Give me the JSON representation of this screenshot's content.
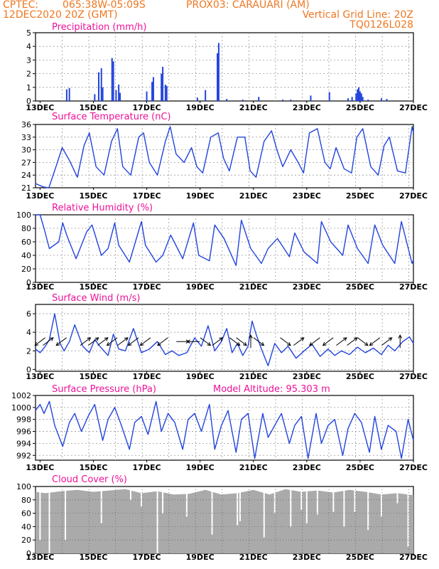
{
  "header": {
    "center": "CPTEC:",
    "coords": "065:38W-05:09S",
    "station": "PROX03: CARAUARI (AM)",
    "date": "12DEC2020 20Z (GMT)",
    "grid_note": "Vertical Grid Line: 20Z",
    "code": "TQ0126L028"
  },
  "colors": {
    "header": "#ee7722",
    "title": "#ee1199",
    "series": "#2244dd",
    "cloud": "#aaaaaa",
    "grid": "#999999"
  },
  "x_axis": {
    "start": "12DEC2020 20Z",
    "end": "27DEC2020 00Z",
    "tick_labels": [
      "13DEC",
      "15DEC",
      "17DEC",
      "19DEC",
      "21DEC",
      "23DEC",
      "25DEC",
      "27DEC"
    ],
    "tick_day": [
      13,
      15,
      17,
      19,
      21,
      23,
      25,
      27
    ]
  },
  "chart_data": [
    {
      "type": "bar",
      "title": "Precipitation (mm/h)",
      "ylim": [
        0,
        5
      ],
      "yticks": [
        0,
        1,
        2,
        3,
        4,
        5
      ],
      "bars": [
        {
          "day": 14.0,
          "value": 0.85
        },
        {
          "day": 14.1,
          "value": 0.95
        },
        {
          "day": 15.05,
          "value": 0.5
        },
        {
          "day": 15.2,
          "value": 2.1
        },
        {
          "day": 15.3,
          "value": 2.4
        },
        {
          "day": 15.35,
          "value": 1.0
        },
        {
          "day": 15.7,
          "value": 3.15
        },
        {
          "day": 15.75,
          "value": 2.9
        },
        {
          "day": 15.85,
          "value": 0.8
        },
        {
          "day": 15.95,
          "value": 1.2
        },
        {
          "day": 16.0,
          "value": 0.6
        },
        {
          "day": 17.0,
          "value": 0.7
        },
        {
          "day": 17.2,
          "value": 1.4
        },
        {
          "day": 17.25,
          "value": 1.75
        },
        {
          "day": 17.55,
          "value": 2.0
        },
        {
          "day": 17.6,
          "value": 2.5
        },
        {
          "day": 17.7,
          "value": 1.2
        },
        {
          "day": 17.75,
          "value": 1.1
        },
        {
          "day": 18.9,
          "value": 0.25
        },
        {
          "day": 19.2,
          "value": 0.8
        },
        {
          "day": 19.65,
          "value": 3.5
        },
        {
          "day": 19.7,
          "value": 4.25
        },
        {
          "day": 20.0,
          "value": 0.15
        },
        {
          "day": 20.6,
          "value": 0.1
        },
        {
          "day": 21.2,
          "value": 0.3
        },
        {
          "day": 22.1,
          "value": 0.1
        },
        {
          "day": 22.4,
          "value": 0.1
        },
        {
          "day": 23.15,
          "value": 0.4
        },
        {
          "day": 23.85,
          "value": 0.65
        },
        {
          "day": 24.55,
          "value": 0.2
        },
        {
          "day": 24.7,
          "value": 0.3
        },
        {
          "day": 24.85,
          "value": 0.55
        },
        {
          "day": 24.9,
          "value": 0.85
        },
        {
          "day": 24.95,
          "value": 1.0
        },
        {
          "day": 25.0,
          "value": 0.7
        },
        {
          "day": 25.05,
          "value": 0.55
        },
        {
          "day": 25.1,
          "value": 0.3
        },
        {
          "day": 25.3,
          "value": 0.1
        },
        {
          "day": 25.8,
          "value": 0.2
        },
        {
          "day": 26.0,
          "value": 0.15
        }
      ]
    },
    {
      "type": "line",
      "title": "Surface Temperature (nC)",
      "ylim": [
        21,
        36
      ],
      "yticks": [
        21,
        24,
        27,
        30,
        33,
        36
      ],
      "x": [
        12.83,
        13.12,
        13.33,
        13.65,
        13.83,
        14.1,
        14.4,
        14.65,
        14.85,
        15.1,
        15.4,
        15.68,
        15.9,
        16.1,
        16.4,
        16.7,
        16.88,
        17.1,
        17.4,
        17.7,
        17.88,
        18.1,
        18.4,
        18.68,
        18.88,
        19.1,
        19.4,
        19.68,
        19.88,
        20.1,
        20.4,
        20.68,
        20.88,
        21.1,
        21.4,
        21.68,
        21.88,
        22.1,
        22.4,
        22.68,
        22.88,
        23.1,
        23.4,
        23.68,
        23.88,
        24.1,
        24.4,
        24.68,
        24.88,
        25.1,
        25.4,
        25.68,
        25.9,
        26.1,
        26.4,
        26.7,
        26.95,
        27.0
      ],
      "y": [
        22.0,
        21.2,
        21.0,
        27.0,
        30.5,
        27.5,
        23.5,
        31.0,
        34.0,
        26.0,
        24.0,
        32.0,
        35.0,
        26.0,
        24.0,
        33.0,
        34.0,
        27.0,
        24.0,
        32.0,
        35.5,
        29.0,
        27.0,
        30.5,
        26.0,
        24.5,
        33.0,
        34.0,
        28.0,
        25.0,
        33.0,
        33.0,
        25.0,
        23.5,
        32.0,
        34.5,
        30.0,
        26.0,
        30.0,
        27.0,
        24.5,
        34.0,
        35.0,
        27.0,
        25.5,
        30.5,
        25.5,
        24.5,
        33.0,
        35.0,
        26.0,
        24.0,
        31.0,
        33.0,
        25.0,
        24.5,
        35.5,
        34.0
      ]
    },
    {
      "type": "line",
      "title": "Relative Humidity (%)",
      "ylim": [
        0,
        100
      ],
      "yticks": [
        0,
        20,
        40,
        60,
        80,
        100
      ],
      "x": [
        12.83,
        13.0,
        13.15,
        13.35,
        13.7,
        13.85,
        14.0,
        14.35,
        14.75,
        14.95,
        15.3,
        15.55,
        15.8,
        15.95,
        16.35,
        16.8,
        16.95,
        17.35,
        17.6,
        17.9,
        18.35,
        18.75,
        18.95,
        19.35,
        19.55,
        19.9,
        20.35,
        20.55,
        20.9,
        21.3,
        21.55,
        21.9,
        22.35,
        22.55,
        22.9,
        23.4,
        23.55,
        23.9,
        24.35,
        24.55,
        24.9,
        25.3,
        25.55,
        25.85,
        26.3,
        26.55,
        26.95,
        27.0
      ],
      "y": [
        100,
        100,
        80,
        50,
        60,
        88,
        70,
        35,
        75,
        85,
        40,
        50,
        88,
        55,
        30,
        90,
        55,
        30,
        40,
        70,
        35,
        88,
        40,
        32,
        85,
        65,
        25,
        92,
        50,
        28,
        50,
        65,
        38,
        73,
        45,
        28,
        90,
        60,
        40,
        85,
        50,
        28,
        85,
        55,
        28,
        90,
        28,
        33
      ]
    },
    {
      "type": "line",
      "title": "Surface Wind (m/s)",
      "ylim": [
        -0.2,
        7
      ],
      "yticks": [
        0,
        2,
        4,
        6
      ],
      "x": [
        12.83,
        13.0,
        13.2,
        13.35,
        13.55,
        13.75,
        13.9,
        14.1,
        14.3,
        14.6,
        14.85,
        15.05,
        15.3,
        15.55,
        15.75,
        15.95,
        16.2,
        16.5,
        16.8,
        17.1,
        17.4,
        17.7,
        17.95,
        18.2,
        18.5,
        18.8,
        19.05,
        19.3,
        19.55,
        19.8,
        20.0,
        20.2,
        20.4,
        20.6,
        20.8,
        20.95,
        21.1,
        21.3,
        21.55,
        21.8,
        22.05,
        22.3,
        22.6,
        22.9,
        23.2,
        23.5,
        23.8,
        24.05,
        24.3,
        24.6,
        24.9,
        25.2,
        25.5,
        25.8,
        26.05,
        26.3,
        26.6,
        26.85,
        27.0
      ],
      "y": [
        2.2,
        1.8,
        2.5,
        3.2,
        6.0,
        2.8,
        2.0,
        3.0,
        4.8,
        2.5,
        1.8,
        3.2,
        2.3,
        1.5,
        3.8,
        2.2,
        2.0,
        4.4,
        1.8,
        2.2,
        3.0,
        1.6,
        2.0,
        1.5,
        1.8,
        3.4,
        2.5,
        4.7,
        2.0,
        3.0,
        4.4,
        1.8,
        2.8,
        1.5,
        2.5,
        5.2,
        3.8,
        2.2,
        0.4,
        2.8,
        1.8,
        2.5,
        1.2,
        2.0,
        2.7,
        1.4,
        2.2,
        1.5,
        2.0,
        1.6,
        2.4,
        1.8,
        2.3,
        1.6,
        2.6,
        2.0,
        3.0,
        3.5,
        2.8
      ],
      "arrows": [
        {
          "day": 13.0,
          "dir": "sw"
        },
        {
          "day": 13.3,
          "dir": "ne"
        },
        {
          "day": 13.8,
          "dir": "sw"
        },
        {
          "day": 14.7,
          "dir": "ne"
        },
        {
          "day": 15.0,
          "dir": "ne"
        },
        {
          "day": 15.35,
          "dir": "ne"
        },
        {
          "day": 15.7,
          "dir": "sw"
        },
        {
          "day": 16.1,
          "dir": "ne"
        },
        {
          "day": 16.5,
          "dir": "sw"
        },
        {
          "day": 16.95,
          "dir": "sw"
        },
        {
          "day": 17.6,
          "dir": "sw"
        },
        {
          "day": 18.35,
          "dir": "e"
        },
        {
          "day": 18.75,
          "dir": "w"
        },
        {
          "day": 19.2,
          "dir": "se"
        },
        {
          "day": 19.65,
          "dir": "ne"
        },
        {
          "day": 20.3,
          "dir": "se"
        },
        {
          "day": 20.55,
          "dir": "se"
        },
        {
          "day": 20.9,
          "dir": "n"
        },
        {
          "day": 21.2,
          "dir": "se"
        },
        {
          "day": 22.2,
          "dir": "se"
        },
        {
          "day": 22.7,
          "dir": "ne"
        },
        {
          "day": 23.3,
          "dir": "sw"
        },
        {
          "day": 23.8,
          "dir": "sw"
        },
        {
          "day": 24.3,
          "dir": "ne"
        },
        {
          "day": 24.7,
          "dir": "ne"
        },
        {
          "day": 25.1,
          "dir": "se"
        },
        {
          "day": 25.55,
          "dir": "sw"
        },
        {
          "day": 26.0,
          "dir": "ne"
        },
        {
          "day": 26.5,
          "dir": "n"
        }
      ]
    },
    {
      "type": "line",
      "title": "Surface Pressure (hPa)",
      "annotation": "Model Altitude: 95.303 m",
      "ylim": [
        991.2,
        1002
      ],
      "yticks": [
        992,
        994,
        996,
        998,
        1000,
        1002
      ],
      "x": [
        12.83,
        13.0,
        13.15,
        13.35,
        13.55,
        13.85,
        14.1,
        14.3,
        14.55,
        14.8,
        15.05,
        15.35,
        15.55,
        15.8,
        16.05,
        16.35,
        16.55,
        16.8,
        17.05,
        17.35,
        17.55,
        17.8,
        18.05,
        18.35,
        18.55,
        18.8,
        19.05,
        19.35,
        19.55,
        19.8,
        20.05,
        20.35,
        20.55,
        20.8,
        21.05,
        21.35,
        21.55,
        21.8,
        22.05,
        22.35,
        22.55,
        22.8,
        23.05,
        23.35,
        23.55,
        23.8,
        24.05,
        24.35,
        24.55,
        24.8,
        25.05,
        25.35,
        25.55,
        25.8,
        26.05,
        26.35,
        26.55,
        26.8,
        27.0
      ],
      "y": [
        999.5,
        1000.5,
        999.0,
        1001.0,
        997.0,
        993.5,
        997.5,
        999.0,
        996.0,
        998.5,
        1000.5,
        994.5,
        998.0,
        1000.0,
        997.0,
        993.0,
        997.5,
        998.5,
        995.5,
        1001.0,
        996.0,
        999.0,
        997.5,
        993.0,
        998.0,
        999.0,
        996.0,
        1000.5,
        993.0,
        997.0,
        999.5,
        992.5,
        998.0,
        999.0,
        991.5,
        999.0,
        995.0,
        997.0,
        999.0,
        994.0,
        997.0,
        998.5,
        991.5,
        999.0,
        994.0,
        997.0,
        998.0,
        992.0,
        996.5,
        999.0,
        997.5,
        992.5,
        998.5,
        993.0,
        997.0,
        996.0,
        991.5,
        998.0,
        994.5
      ]
    },
    {
      "type": "bar",
      "title": "Cloud Cover (%)",
      "ylim": [
        0,
        100
      ],
      "yticks": [
        0,
        20,
        40,
        60,
        80,
        100
      ],
      "series_profile": {
        "x": [
          12.83,
          13.2,
          13.8,
          14.4,
          15.0,
          15.6,
          16.2,
          16.8,
          17.4,
          18.0,
          18.6,
          19.2,
          19.8,
          20.4,
          21.0,
          21.6,
          22.2,
          22.8,
          23.4,
          24.0,
          24.6,
          25.2,
          25.8,
          26.4,
          27.0
        ],
        "y": [
          92,
          90,
          93,
          95,
          92,
          94,
          96,
          90,
          93,
          88,
          89,
          95,
          88,
          90,
          95,
          88,
          96,
          92,
          94,
          91,
          95,
          92,
          88,
          90,
          87
        ]
      },
      "dips": [
        {
          "day": 13.0,
          "value": 20
        },
        {
          "day": 13.35,
          "value": 0
        },
        {
          "day": 13.95,
          "value": 20
        },
        {
          "day": 15.3,
          "value": 45
        },
        {
          "day": 16.4,
          "value": 80
        },
        {
          "day": 16.8,
          "value": 70
        },
        {
          "day": 17.4,
          "value": 0
        },
        {
          "day": 17.6,
          "value": 60
        },
        {
          "day": 18.5,
          "value": 55
        },
        {
          "day": 19.45,
          "value": 28
        },
        {
          "day": 20.4,
          "value": 42
        },
        {
          "day": 20.5,
          "value": 48
        },
        {
          "day": 21.4,
          "value": 24
        },
        {
          "day": 21.8,
          "value": 60
        },
        {
          "day": 22.4,
          "value": 40
        },
        {
          "day": 22.8,
          "value": 65
        },
        {
          "day": 23.0,
          "value": 45
        },
        {
          "day": 23.4,
          "value": 58
        },
        {
          "day": 24.0,
          "value": 62
        },
        {
          "day": 24.4,
          "value": 40
        },
        {
          "day": 24.8,
          "value": 62
        },
        {
          "day": 25.3,
          "value": 35
        },
        {
          "day": 25.8,
          "value": 55
        },
        {
          "day": 26.4,
          "value": 75
        },
        {
          "day": 26.8,
          "value": 10
        }
      ]
    }
  ]
}
